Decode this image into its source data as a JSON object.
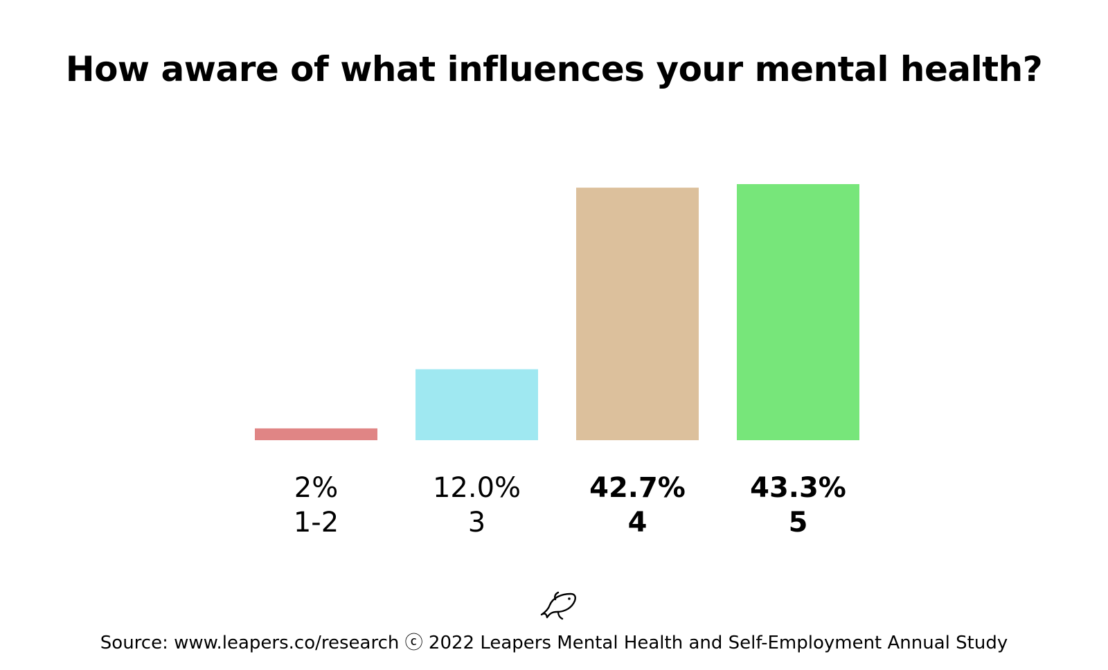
{
  "chart_data": {
    "type": "bar",
    "title": "How aware of what influences your mental health?",
    "categories": [
      "1-2",
      "3",
      "4",
      "5"
    ],
    "values": [
      2,
      12.0,
      42.7,
      43.3
    ],
    "value_labels": [
      "2%",
      "12.0%",
      "42.7%",
      "43.3%"
    ],
    "bold_labels": [
      false,
      false,
      true,
      true
    ],
    "colors": [
      "#e08585",
      "#9fe8f1",
      "#dcc09c",
      "#77e67a"
    ],
    "ylim": [
      0,
      43.3
    ],
    "xlabel": "",
    "ylabel": "",
    "grid": false,
    "legend": "none"
  },
  "footer": {
    "logo_icon": "fish-icon",
    "source_text": "Source: www.leapers.co/research ⓒ 2022 Leapers Mental Health and Self-Employment Annual Study"
  }
}
